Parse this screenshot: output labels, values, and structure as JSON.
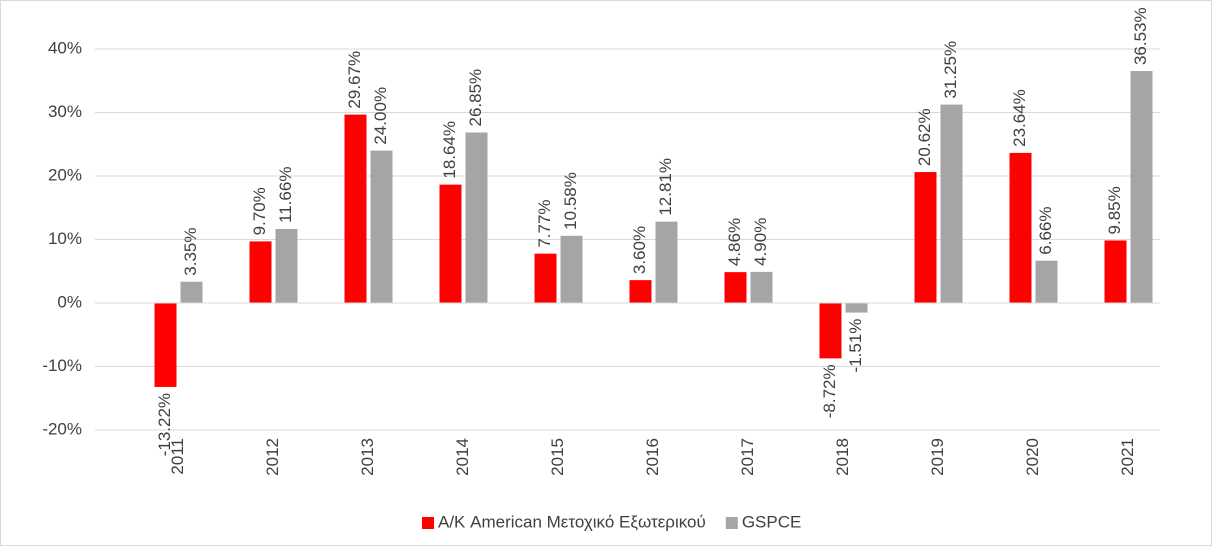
{
  "chart_data": {
    "type": "bar",
    "categories": [
      "2011",
      "2012",
      "2013",
      "2014",
      "2015",
      "2016",
      "2017",
      "2018",
      "2019",
      "2020",
      "2021"
    ],
    "series": [
      {
        "name": "Α/Κ American Μετοχικό Εξωτερικού",
        "color": "#ff0000",
        "values": [
          -13.22,
          9.7,
          29.67,
          18.64,
          7.77,
          3.6,
          4.86,
          -8.72,
          20.62,
          23.64,
          9.85
        ],
        "value_labels": [
          "-13.22%",
          "9.70%",
          "29.67%",
          "18.64%",
          "7.77%",
          "3.60%",
          "4.86%",
          "-8.72%",
          "20.62%",
          "23.64%",
          "9.85%"
        ]
      },
      {
        "name": "GSPCE",
        "color": "#a5a5a5",
        "values": [
          3.35,
          11.66,
          24.0,
          26.85,
          10.58,
          12.81,
          4.9,
          -1.51,
          31.25,
          6.66,
          36.53
        ],
        "value_labels": [
          "3.35%",
          "11.66%",
          "24.00%",
          "26.85%",
          "10.58%",
          "12.81%",
          "4.90%",
          "-1.51%",
          "31.25%",
          "6.66%",
          "36.53%"
        ]
      }
    ],
    "ylim": [
      -20,
      40
    ],
    "yticks": [
      {
        "value": -20,
        "label": "-20%"
      },
      {
        "value": -10,
        "label": "-10%"
      },
      {
        "value": 0,
        "label": "0%"
      },
      {
        "value": 10,
        "label": "10%"
      },
      {
        "value": 20,
        "label": "20%"
      },
      {
        "value": 30,
        "label": "30%"
      },
      {
        "value": 40,
        "label": "40%"
      }
    ],
    "grid": true,
    "legend": "bottom"
  }
}
